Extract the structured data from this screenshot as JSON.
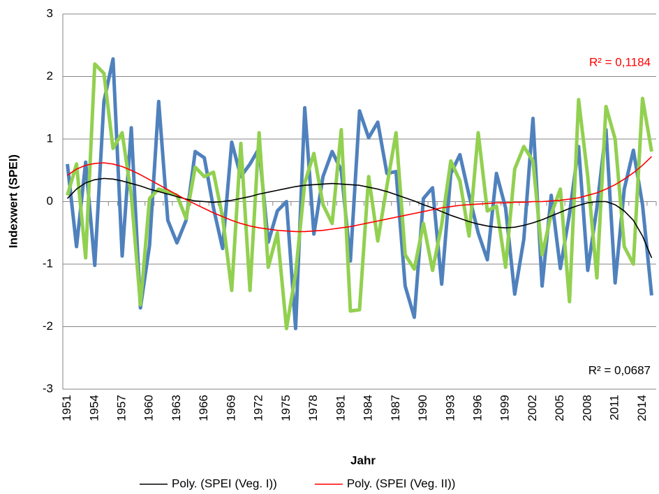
{
  "chart_data": {
    "type": "line",
    "x_label": "Jahr",
    "y_label": "Indexwert (SPEI)",
    "categories": [
      "1951",
      null,
      null,
      "1954",
      null,
      null,
      "1957",
      null,
      null,
      "1960",
      null,
      null,
      "1963",
      null,
      null,
      "1966",
      null,
      null,
      "1969",
      null,
      null,
      "1972",
      null,
      null,
      "1975",
      null,
      null,
      "1978",
      null,
      null,
      "1981",
      null,
      null,
      "1984",
      null,
      null,
      "1987",
      null,
      null,
      "1990",
      null,
      null,
      "1993",
      null,
      null,
      "1996",
      null,
      null,
      "1999",
      null,
      null,
      "2002",
      null,
      null,
      "2005",
      null,
      null,
      "2008",
      null,
      null,
      "2011",
      null,
      null,
      "2014",
      null
    ],
    "ylim": [
      -3,
      3
    ],
    "yticks": [
      3,
      2,
      1,
      0,
      -1,
      -2,
      -3
    ],
    "grid": true,
    "legend": "bottom",
    "series": [
      {
        "color": "#4f81bd",
        "trendline": false,
        "values": [
          0.6,
          -0.72,
          0.63,
          -1.02,
          1.6,
          2.28,
          -0.87,
          1.18,
          -1.7,
          -0.7,
          1.6,
          -0.3,
          -0.66,
          -0.3,
          0.8,
          0.7,
          -0.1,
          -0.75,
          0.95,
          0.4,
          0.6,
          0.85,
          -0.65,
          -0.15,
          0.0,
          -2.03,
          1.5,
          -0.52,
          0.4,
          0.8,
          0.5,
          -0.95,
          1.45,
          1.02,
          1.27,
          0.45,
          0.48,
          -1.35,
          -1.85,
          0.05,
          0.22,
          -1.32,
          0.45,
          0.75,
          0.1,
          -0.5,
          -0.93,
          0.45,
          -0.1,
          -1.48,
          -0.6,
          1.33,
          -1.35,
          0.1,
          -1.07,
          -0.2,
          0.88,
          -1.1,
          -0.1,
          1.15,
          -1.3,
          0.2,
          0.82,
          -0.05,
          -1.5
        ]
      },
      {
        "color": "#92d050",
        "trendline": false,
        "values": [
          0.1,
          0.6,
          -0.9,
          2.2,
          2.05,
          0.85,
          1.1,
          0.1,
          -1.65,
          0.05,
          0.2,
          0.15,
          0.1,
          -0.27,
          0.55,
          0.4,
          0.47,
          -0.25,
          -1.42,
          0.93,
          -1.42,
          1.1,
          -1.05,
          -0.5,
          -2.03,
          -1.15,
          0.3,
          0.77,
          -0.05,
          -0.35,
          1.15,
          -1.75,
          -1.73,
          0.4,
          -0.63,
          0.25,
          1.1,
          -0.85,
          -1.08,
          -0.35,
          -1.1,
          -0.37,
          0.65,
          0.33,
          -0.55,
          1.1,
          -0.15,
          -0.07,
          -1.05,
          0.52,
          0.88,
          0.65,
          -0.85,
          -0.2,
          0.2,
          -1.6,
          1.63,
          0.4,
          -1.22,
          1.52,
          1.0,
          -0.72,
          -1.0,
          1.65,
          0.8
        ]
      },
      {
        "name": "Poly. (SPEI (Veg. I))",
        "color": "#000000",
        "trendline": true,
        "values": [
          0.05,
          0.2,
          0.3,
          0.35,
          0.37,
          0.36,
          0.33,
          0.29,
          0.25,
          0.2,
          0.16,
          0.12,
          0.08,
          0.04,
          0.01,
          0.0,
          -0.01,
          0.0,
          0.02,
          0.05,
          0.08,
          0.12,
          0.15,
          0.18,
          0.21,
          0.24,
          0.26,
          0.27,
          0.28,
          0.29,
          0.28,
          0.27,
          0.26,
          0.23,
          0.2,
          0.16,
          0.11,
          0.06,
          0.01,
          -0.05,
          -0.1,
          -0.16,
          -0.22,
          -0.27,
          -0.32,
          -0.36,
          -0.39,
          -0.41,
          -0.42,
          -0.41,
          -0.38,
          -0.34,
          -0.29,
          -0.23,
          -0.17,
          -0.11,
          -0.06,
          -0.02,
          0.0,
          0.0,
          -0.05,
          -0.15,
          -0.3,
          -0.55,
          -0.9
        ]
      },
      {
        "name": "Poly. (SPEI (Veg. II))",
        "color": "#ff0000",
        "trendline": true,
        "values": [
          0.42,
          0.52,
          0.58,
          0.61,
          0.62,
          0.6,
          0.56,
          0.5,
          0.43,
          0.35,
          0.27,
          0.19,
          0.11,
          0.03,
          -0.04,
          -0.11,
          -0.18,
          -0.24,
          -0.3,
          -0.35,
          -0.39,
          -0.42,
          -0.44,
          -0.46,
          -0.47,
          -0.48,
          -0.48,
          -0.47,
          -0.46,
          -0.44,
          -0.42,
          -0.4,
          -0.37,
          -0.34,
          -0.31,
          -0.28,
          -0.25,
          -0.22,
          -0.19,
          -0.16,
          -0.13,
          -0.1,
          -0.08,
          -0.06,
          -0.05,
          -0.04,
          -0.03,
          -0.02,
          -0.02,
          -0.01,
          -0.01,
          0.0,
          0.0,
          0.01,
          0.02,
          0.04,
          0.06,
          0.1,
          0.14,
          0.2,
          0.27,
          0.36,
          0.46,
          0.58,
          0.72
        ]
      }
    ],
    "annotations": [
      {
        "text": "R² = 0,1184",
        "color": "#ff0000"
      },
      {
        "text": "R² = 0,0687",
        "color": "#000000"
      }
    ]
  }
}
